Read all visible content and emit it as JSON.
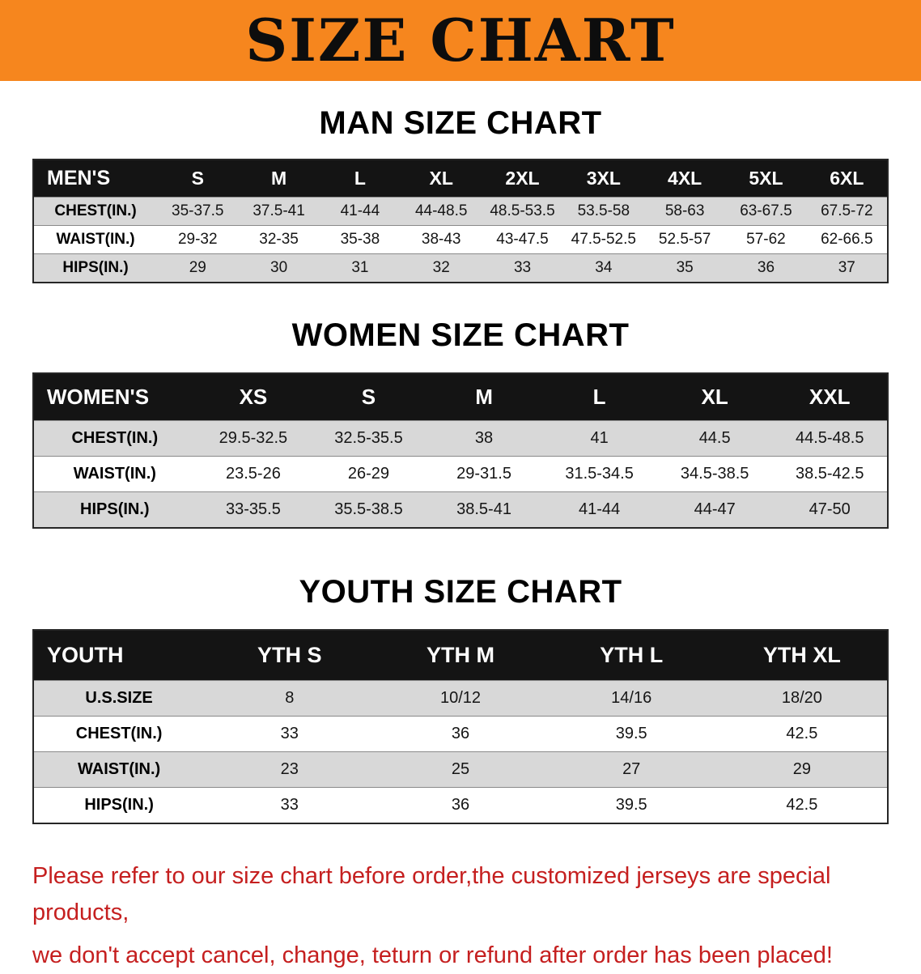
{
  "banner": {
    "title": "SIZE CHART"
  },
  "colors": {
    "banner_bg": "#f6861e",
    "header_bg": "#141414",
    "row_alt": "#d8d8d8",
    "note_red": "#c51f1f"
  },
  "tables": {
    "men": {
      "heading": "MAN SIZE CHART",
      "corner": "MEN'S",
      "columns": [
        "S",
        "M",
        "L",
        "XL",
        "2XL",
        "3XL",
        "4XL",
        "5XL",
        "6XL"
      ],
      "rows": [
        {
          "label": "CHEST(IN.)",
          "values": [
            "35-37.5",
            "37.5-41",
            "41-44",
            "44-48.5",
            "48.5-53.5",
            "53.5-58",
            "58-63",
            "63-67.5",
            "67.5-72"
          ]
        },
        {
          "label": "WAIST(IN.)",
          "values": [
            "29-32",
            "32-35",
            "35-38",
            "38-43",
            "43-47.5",
            "47.5-52.5",
            "52.5-57",
            "57-62",
            "62-66.5"
          ]
        },
        {
          "label": "HIPS(IN.)",
          "values": [
            "29",
            "30",
            "31",
            "32",
            "33",
            "34",
            "35",
            "36",
            "37"
          ]
        }
      ]
    },
    "women": {
      "heading": "WOMEN SIZE CHART",
      "corner": "WOMEN'S",
      "columns": [
        "XS",
        "S",
        "M",
        "L",
        "XL",
        "XXL"
      ],
      "rows": [
        {
          "label": "CHEST(IN.)",
          "values": [
            "29.5-32.5",
            "32.5-35.5",
            "38",
            "41",
            "44.5",
            "44.5-48.5"
          ]
        },
        {
          "label": "WAIST(IN.)",
          "values": [
            "23.5-26",
            "26-29",
            "29-31.5",
            "31.5-34.5",
            "34.5-38.5",
            "38.5-42.5"
          ]
        },
        {
          "label": "HIPS(IN.)",
          "values": [
            "33-35.5",
            "35.5-38.5",
            "38.5-41",
            "41-44",
            "44-47",
            "47-50"
          ]
        }
      ]
    },
    "youth": {
      "heading": "YOUTH SIZE CHART",
      "corner": "YOUTH",
      "columns": [
        "YTH S",
        "YTH M",
        "YTH L",
        "YTH XL"
      ],
      "rows": [
        {
          "label": "U.S.SIZE",
          "values": [
            "8",
            "10/12",
            "14/16",
            "18/20"
          ]
        },
        {
          "label": "CHEST(IN.)",
          "values": [
            "33",
            "36",
            "39.5",
            "42.5"
          ]
        },
        {
          "label": "WAIST(IN.)",
          "values": [
            "23",
            "25",
            "27",
            "29"
          ]
        },
        {
          "label": "HIPS(IN.)",
          "values": [
            "33",
            "36",
            "39.5",
            "42.5"
          ]
        }
      ]
    }
  },
  "note": {
    "line1": "Please refer to our size chart before order,the customized jerseys are special products,",
    "line2": "we don't accept cancel, change, teturn or refund after order has been placed!"
  }
}
